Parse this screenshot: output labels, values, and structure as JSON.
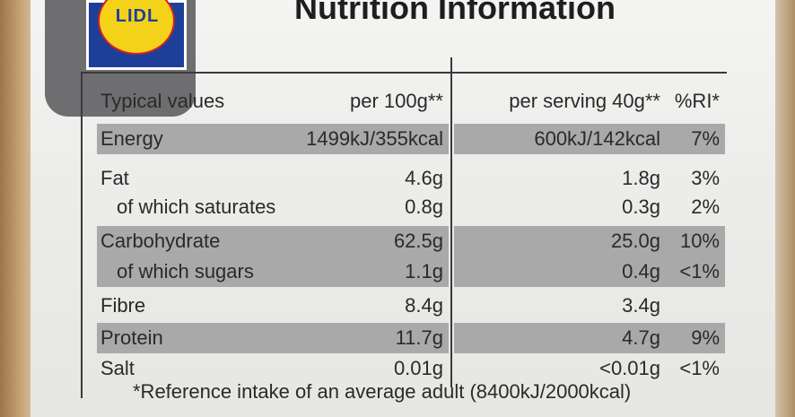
{
  "brand": {
    "logo_text": "LIDL"
  },
  "title": "Nutrition Information",
  "header": {
    "name": "Typical values",
    "per100": "per 100g**",
    "serving": "per serving 40g**",
    "ri": "%RI*"
  },
  "rows": [
    {
      "name": "Energy",
      "per100": "1499kJ/355kcal",
      "serving": "600kJ/142kcal",
      "ri": "7%"
    },
    {
      "name": "Fat",
      "per100": "4.6g",
      "serving": "1.8g",
      "ri": "3%"
    },
    {
      "name": "of which saturates",
      "per100": "0.8g",
      "serving": "0.3g",
      "ri": "2%"
    },
    {
      "name": "Carbohydrate",
      "per100": "62.5g",
      "serving": "25.0g",
      "ri": "10%"
    },
    {
      "name": "of which sugars",
      "per100": "1.1g",
      "serving": "0.4g",
      "ri": "<1%"
    },
    {
      "name": "Fibre",
      "per100": "8.4g",
      "serving": "3.4g",
      "ri": ""
    },
    {
      "name": "Protein",
      "per100": "11.7g",
      "serving": "4.7g",
      "ri": "9%"
    },
    {
      "name": "Salt",
      "per100": "0.01g",
      "serving": "<0.01g",
      "ri": "<1%"
    }
  ],
  "footnote": "*Reference intake of an average adult (8400kJ/2000kcal)"
}
